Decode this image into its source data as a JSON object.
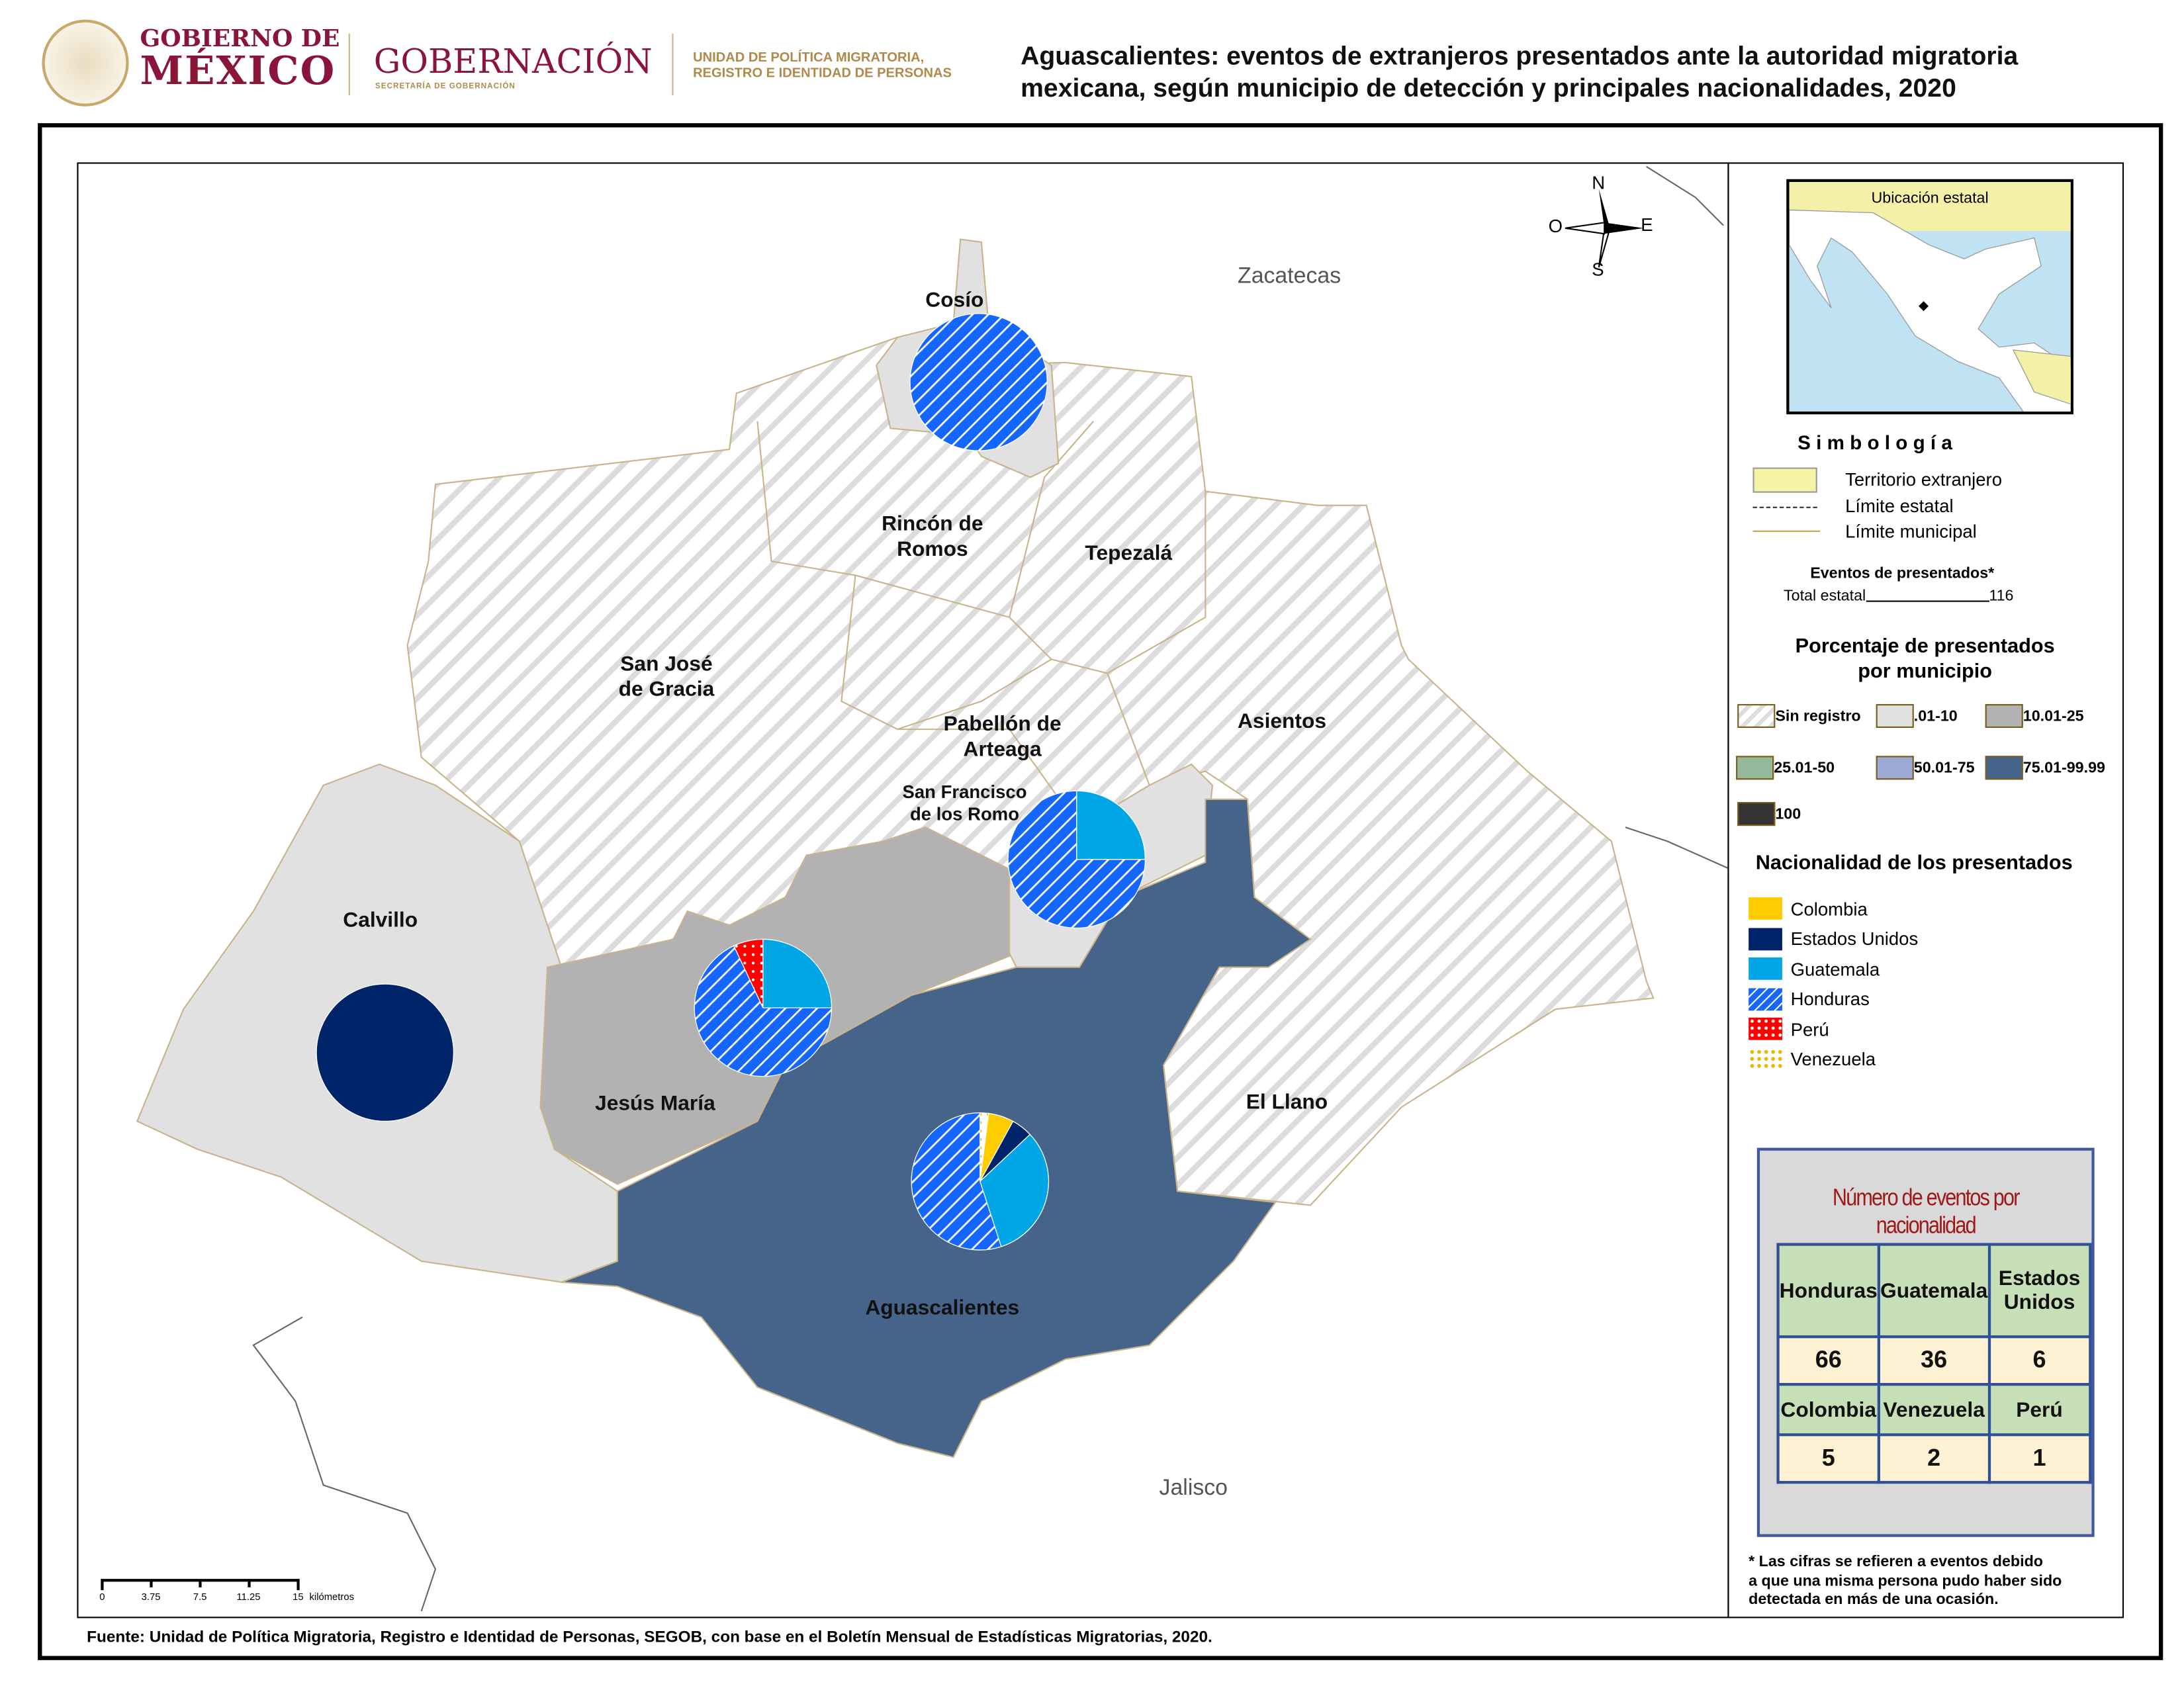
{
  "header": {
    "logo_text": "ESTADOS UNIDOS MEXICANOS",
    "gobierno_line1": "GOBIERNO DE",
    "gobierno_line2": "MÉXICO",
    "gobernacion": "GOBERNACIÓN",
    "gobernacion_sub": "SECRETARÍA DE GOBERNACIÓN",
    "unidad_line1": "UNIDAD DE POLÍTICA MIGRATORIA,",
    "unidad_line2": "REGISTRO E IDENTIDAD DE PERSONAS",
    "title_line1": "Aguascalientes: eventos de extranjeros presentados ante la autoridad migratoria",
    "title_line2": "mexicana, según municipio de detección y principales nacionalidades, 2020"
  },
  "map": {
    "neighbors": {
      "north": "Zacatecas",
      "south": "Jalisco"
    },
    "compass": {
      "n": "N",
      "s": "S",
      "e": "E",
      "w": "O"
    },
    "municipios": {
      "cosio": "Cosío",
      "rincon_1": "Rincón de",
      "rincon_2": "Romos",
      "tepezala": "Tepezalá",
      "sanjose_1": "San José",
      "sanjose_2": "de Gracia",
      "pabellon_1": "Pabellón de",
      "pabellon_2": "Arteaga",
      "asientos": "Asientos",
      "sanfco_1": "San Francisco",
      "sanfco_2": "de los Romo",
      "calvillo": "Calvillo",
      "jesusmaria": "Jesús María",
      "elllano": "El Llano",
      "ags": "Aguascalientes"
    },
    "scale": {
      "ticks": [
        "0",
        "3.75",
        "7.5",
        "11.25",
        "15"
      ],
      "unit": "kilómetros"
    },
    "pies": [
      {
        "municipio": "Cosío",
        "slices": [
          {
            "nat": "Honduras",
            "pct": 100
          }
        ]
      },
      {
        "municipio": "Calvillo",
        "slices": [
          {
            "nat": "Estados Unidos",
            "pct": 100
          }
        ]
      },
      {
        "municipio": "San Francisco de los Romo",
        "slices": [
          {
            "nat": "Guatemala",
            "pct": 25
          },
          {
            "nat": "Honduras",
            "pct": 75
          }
        ]
      },
      {
        "municipio": "Jesús María",
        "slices": [
          {
            "nat": "Guatemala",
            "pct": 25
          },
          {
            "nat": "Honduras",
            "pct": 68
          },
          {
            "nat": "Perú",
            "pct": 7
          }
        ]
      },
      {
        "municipio": "Aguascalientes",
        "slices": [
          {
            "nat": "Venezuela",
            "pct": 2
          },
          {
            "nat": "Colombia",
            "pct": 6
          },
          {
            "nat": "Estados Unidos",
            "pct": 5
          },
          {
            "nat": "Guatemala",
            "pct": 32
          },
          {
            "nat": "Honduras",
            "pct": 55
          }
        ]
      }
    ]
  },
  "legend": {
    "inset_title": "Ubicación estatal",
    "simbologia": "S i m b o l o g í a",
    "territorio": "Territorio extranjero",
    "limite_estatal": "Límite estatal",
    "limite_municipal": "Límite municipal",
    "eventos_title": "Eventos de presentados*",
    "total_label": "Total estatal",
    "total_value": "116",
    "porcentaje_title_1": "Porcentaje de presentados",
    "porcentaje_title_2": "por municipio",
    "classes": [
      {
        "label": "Sin registro",
        "color": "hatch"
      },
      {
        "label": ".01-10",
        "color": "#e1e1e1"
      },
      {
        "label": "10.01-25",
        "color": "#b2b2b2"
      },
      {
        "label": "25.01-50",
        "color": "#97b99b"
      },
      {
        "label": "50.01-75",
        "color": "#9eaad6"
      },
      {
        "label": "75.01-99.99",
        "color": "#46648a"
      },
      {
        "label": "100",
        "color": "#333333"
      }
    ],
    "nacionalidad_title": "Nacionalidad de los presentados",
    "nationalities": [
      {
        "label": "Colombia",
        "color": "#ffcc00"
      },
      {
        "label": "Estados Unidos",
        "color": "#002469"
      },
      {
        "label": "Guatemala",
        "color": "#00a6e6"
      },
      {
        "label": "Honduras",
        "color": "#1565ff"
      },
      {
        "label": "Perú",
        "color": "#ff0000"
      },
      {
        "label": "Venezuela",
        "color": "#ffdd33"
      }
    ]
  },
  "table": {
    "title": "Número de eventos por nacionalidad",
    "row1_headers": [
      "Honduras",
      "Guatemala",
      "Estados Unidos"
    ],
    "row1_values": [
      "66",
      "36",
      "6"
    ],
    "row2_headers": [
      "Colombia",
      "Venezuela",
      "Perú"
    ],
    "row2_values": [
      "5",
      "2",
      "1"
    ]
  },
  "footnote": {
    "l1": "* Las cifras se refieren a eventos debido",
    "l2": "a que una misma persona pudo haber sido",
    "l3": "detectada en más de una ocasión."
  },
  "source": "Fuente: Unidad de Política Migratoria, Registro e Identidad de Personas, SEGOB, con base en el Boletín Mensual de Estadísticas Migratorias, 2020."
}
